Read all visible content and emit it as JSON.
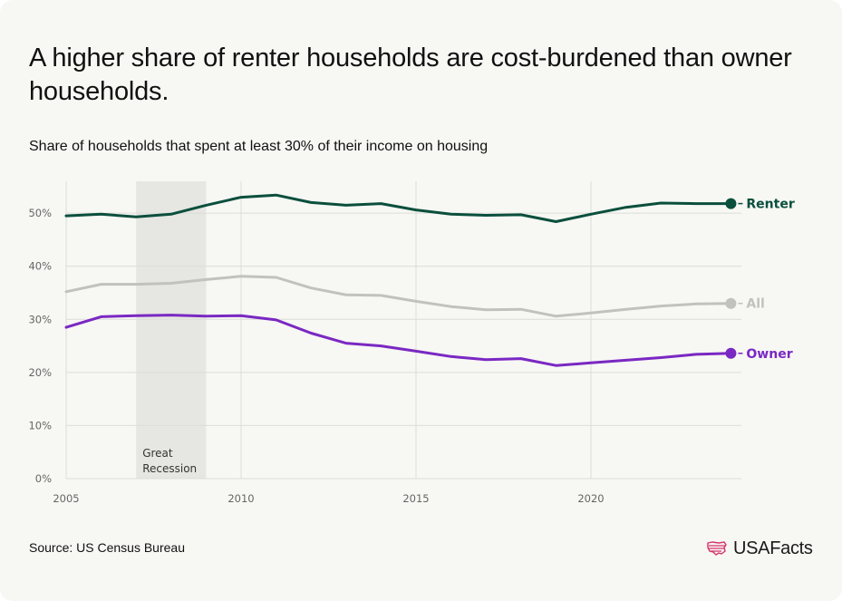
{
  "title": "A higher share of renter households are cost-burdened than owner households.",
  "subtitle": "Share of households that spent at least 30% of their income on housing",
  "source": "Source: US Census Bureau",
  "logo_text": "USAFacts",
  "colors": {
    "renter": "#0a4f3c",
    "all": "#c2c2bd",
    "owner": "#7a28c2",
    "recession": "#e6e6e2",
    "grid": "#dcdcd8",
    "background": "#f7f7f4",
    "logo_icon": "#d6336c"
  },
  "chart_data": {
    "type": "line",
    "title": "A higher share of renter households are cost-burdened than owner households.",
    "subtitle": "Share of households that spent at least 30% of their income on housing",
    "xlabel": "",
    "ylabel": "",
    "x": [
      2005,
      2006,
      2007,
      2008,
      2009,
      2010,
      2011,
      2012,
      2013,
      2014,
      2015,
      2016,
      2017,
      2018,
      2019,
      2020,
      2021,
      2022,
      2023,
      2024
    ],
    "xlim": [
      2005,
      2024.3
    ],
    "ylim": [
      0,
      56
    ],
    "x_ticks": [
      2005,
      2010,
      2015,
      2020
    ],
    "y_ticks": [
      0,
      10,
      20,
      30,
      40,
      50
    ],
    "y_tick_labels": [
      "0%",
      "10%",
      "20%",
      "30%",
      "40%",
      "50%"
    ],
    "series": [
      {
        "name": "Renter",
        "key": "renter",
        "values": [
          49.5,
          49.8,
          49.3,
          49.8,
          51.5,
          53.0,
          53.4,
          52.0,
          51.5,
          51.8,
          50.6,
          49.8,
          49.6,
          49.7,
          48.4,
          49.8,
          51.1,
          51.9,
          51.8,
          51.8
        ]
      },
      {
        "name": "All",
        "key": "all",
        "values": [
          35.2,
          36.6,
          36.6,
          36.8,
          37.5,
          38.1,
          37.9,
          35.9,
          34.6,
          34.5,
          33.4,
          32.4,
          31.8,
          31.9,
          30.6,
          31.2,
          31.9,
          32.5,
          32.9,
          33.0
        ]
      },
      {
        "name": "Owner",
        "key": "owner",
        "values": [
          28.5,
          30.5,
          30.7,
          30.8,
          30.6,
          30.7,
          29.9,
          27.4,
          25.5,
          25.0,
          24.0,
          23.0,
          22.4,
          22.6,
          21.3,
          21.8,
          22.3,
          22.8,
          23.4,
          23.6
        ]
      }
    ],
    "shaded_regions": [
      {
        "label_lines": [
          "Great",
          "Recession"
        ],
        "x_start": 2007,
        "x_end": 2009
      }
    ],
    "grid": true,
    "legend": "direct labels at right end of lines"
  }
}
